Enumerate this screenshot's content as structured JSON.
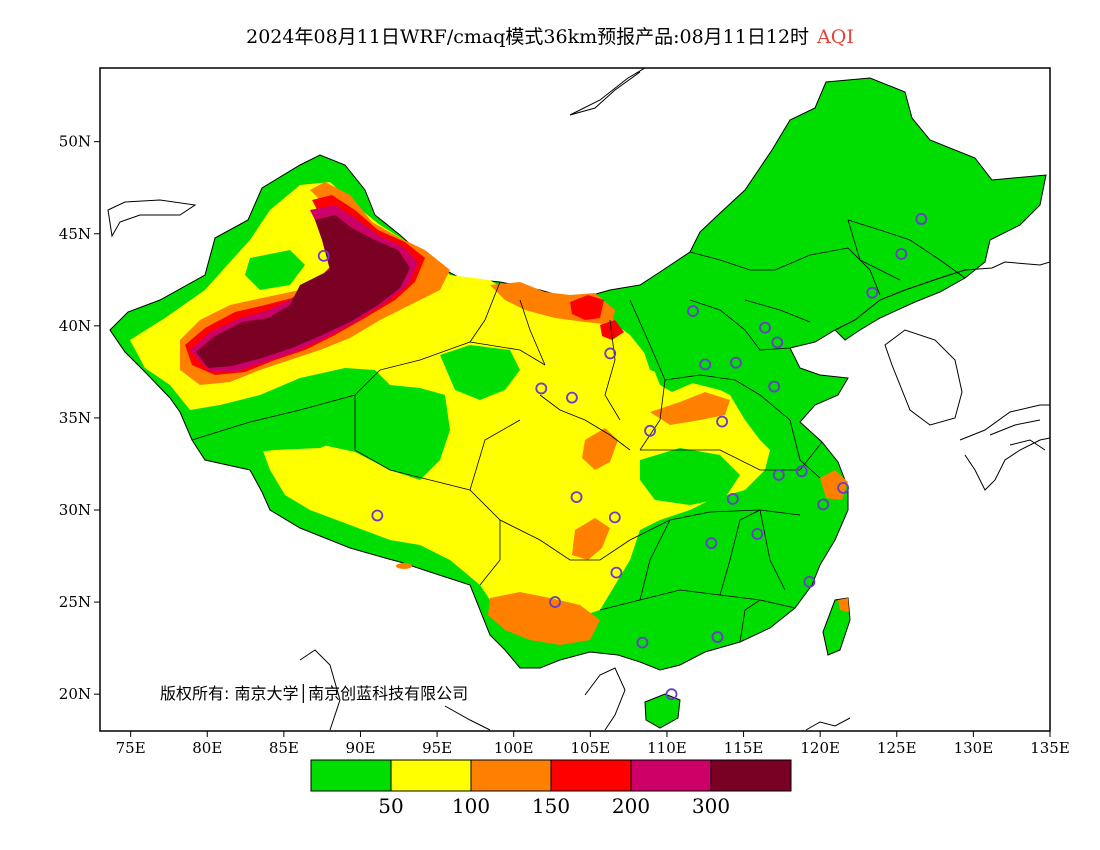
{
  "title": {
    "text": "2024年08月11日WRF/cmaq模式36km预报产品:08月11日12时",
    "variable": "AQI"
  },
  "copyright": "版权所有: 南京大学│南京创蓝科技有限公司",
  "map": {
    "lon_range": [
      73,
      135
    ],
    "lat_range": [
      18,
      54
    ],
    "lon_ticks": [
      {
        "value": 75,
        "label": "75E"
      },
      {
        "value": 80,
        "label": "80E"
      },
      {
        "value": 85,
        "label": "85E"
      },
      {
        "value": 90,
        "label": "90E"
      },
      {
        "value": 95,
        "label": "95E"
      },
      {
        "value": 100,
        "label": "100E"
      },
      {
        "value": 105,
        "label": "105E"
      },
      {
        "value": 110,
        "label": "110E"
      },
      {
        "value": 115,
        "label": "115E"
      },
      {
        "value": 120,
        "label": "120E"
      },
      {
        "value": 125,
        "label": "125E"
      },
      {
        "value": 130,
        "label": "130E"
      },
      {
        "value": 135,
        "label": "135E"
      }
    ],
    "lat_ticks": [
      {
        "value": 20,
        "label": "20N"
      },
      {
        "value": 25,
        "label": "25N"
      },
      {
        "value": 30,
        "label": "30N"
      },
      {
        "value": 35,
        "label": "35N"
      },
      {
        "value": 40,
        "label": "40N"
      },
      {
        "value": 45,
        "label": "45N"
      },
      {
        "value": 50,
        "label": "50N"
      }
    ],
    "stations": [
      {
        "lon": 87.6,
        "lat": 43.8
      },
      {
        "lon": 91.1,
        "lat": 29.7
      },
      {
        "lon": 101.8,
        "lat": 36.6
      },
      {
        "lon": 103.8,
        "lat": 36.1
      },
      {
        "lon": 106.3,
        "lat": 38.5
      },
      {
        "lon": 104.1,
        "lat": 30.7
      },
      {
        "lon": 106.6,
        "lat": 29.6
      },
      {
        "lon": 106.7,
        "lat": 26.6
      },
      {
        "lon": 102.7,
        "lat": 25.0
      },
      {
        "lon": 108.4,
        "lat": 22.8
      },
      {
        "lon": 110.3,
        "lat": 20.0
      },
      {
        "lon": 113.3,
        "lat": 23.1
      },
      {
        "lon": 112.9,
        "lat": 28.2
      },
      {
        "lon": 114.3,
        "lat": 30.6
      },
      {
        "lon": 115.9,
        "lat": 28.7
      },
      {
        "lon": 117.3,
        "lat": 31.9
      },
      {
        "lon": 119.3,
        "lat": 26.1
      },
      {
        "lon": 120.2,
        "lat": 30.3
      },
      {
        "lon": 118.8,
        "lat": 32.1
      },
      {
        "lon": 121.5,
        "lat": 31.2
      },
      {
        "lon": 108.9,
        "lat": 34.3
      },
      {
        "lon": 113.6,
        "lat": 34.8
      },
      {
        "lon": 112.5,
        "lat": 37.9
      },
      {
        "lon": 114.5,
        "lat": 38.0
      },
      {
        "lon": 117.0,
        "lat": 36.7
      },
      {
        "lon": 117.2,
        "lat": 39.1
      },
      {
        "lon": 116.4,
        "lat": 39.9
      },
      {
        "lon": 111.7,
        "lat": 40.8
      },
      {
        "lon": 123.4,
        "lat": 41.8
      },
      {
        "lon": 125.3,
        "lat": 43.9
      },
      {
        "lon": 126.6,
        "lat": 45.8
      }
    ]
  },
  "legend": {
    "colors": [
      "#00dd00",
      "#ffff00",
      "#ff8000",
      "#ff0000",
      "#cc0066",
      "#7a0024"
    ],
    "labels": [
      "50",
      "100",
      "150",
      "200",
      "300"
    ]
  },
  "colors": {
    "good": "#00dd00",
    "moderate": "#ffff00",
    "sensitive": "#ff8000",
    "unhealthy": "#ff0000",
    "very_unhealthy": "#cc0066",
    "hazardous": "#7a0024",
    "station": "#6a3cc8"
  }
}
